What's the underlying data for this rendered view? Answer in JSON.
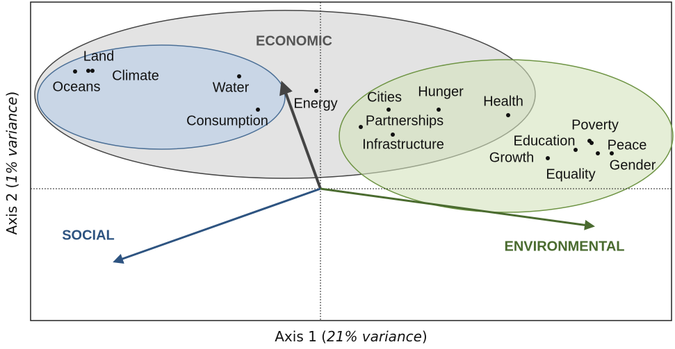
{
  "x_axis_label": {
    "prefix": "Axis 1 (",
    "italic": "21% variance",
    "suffix": ")"
  },
  "y_axis_label": {
    "prefix": "Axis 2 (",
    "italic": "1% variance",
    "suffix": ")"
  },
  "groups": [
    {
      "label": "ECONOMIC"
    },
    {
      "label": "SOCIAL"
    },
    {
      "label": "ENVIRONMENTAL"
    }
  ],
  "nodes": [
    {
      "label": "Land"
    },
    {
      "label": "Oceans"
    },
    {
      "label": "Climate"
    },
    {
      "label": "Water"
    },
    {
      "label": "Consumption"
    },
    {
      "label": "Energy"
    },
    {
      "label": "Cities"
    },
    {
      "label": "Hunger"
    },
    {
      "label": "Partnerships"
    },
    {
      "label": "Infrastructure"
    },
    {
      "label": "Health"
    },
    {
      "label": "Poverty"
    },
    {
      "label": "Education"
    },
    {
      "label": "Peace"
    },
    {
      "label": "Growth"
    },
    {
      "label": "Gender"
    },
    {
      "label": "Equality"
    }
  ]
}
